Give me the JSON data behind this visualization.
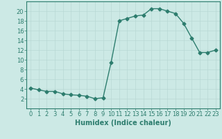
{
  "x": [
    0,
    1,
    2,
    3,
    4,
    5,
    6,
    7,
    8,
    9,
    10,
    11,
    12,
    13,
    14,
    15,
    16,
    17,
    18,
    19,
    20,
    21,
    22,
    23
  ],
  "y": [
    4.2,
    3.8,
    3.5,
    3.5,
    3.0,
    2.8,
    2.7,
    2.5,
    2.0,
    2.2,
    9.5,
    18.0,
    18.5,
    19.0,
    19.2,
    20.5,
    20.5,
    20.0,
    19.5,
    17.5,
    14.5,
    11.5,
    11.5,
    12.0
  ],
  "line_color": "#2d7d6e",
  "bg_color": "#cce9e5",
  "grid_color_major": "#b8d8d4",
  "grid_color_minor": "#d0e8e4",
  "xlabel": "Humidex (Indice chaleur)",
  "xlim": [
    -0.5,
    23.5
  ],
  "ylim": [
    0,
    22
  ],
  "yticks": [
    2,
    4,
    6,
    8,
    10,
    12,
    14,
    16,
    18,
    20
  ],
  "xticks": [
    0,
    1,
    2,
    3,
    4,
    5,
    6,
    7,
    8,
    9,
    10,
    11,
    12,
    13,
    14,
    15,
    16,
    17,
    18,
    19,
    20,
    21,
    22,
    23
  ],
  "marker": "D",
  "markersize": 2.5,
  "linewidth": 1.0,
  "xlabel_fontsize": 7,
  "tick_fontsize": 6
}
